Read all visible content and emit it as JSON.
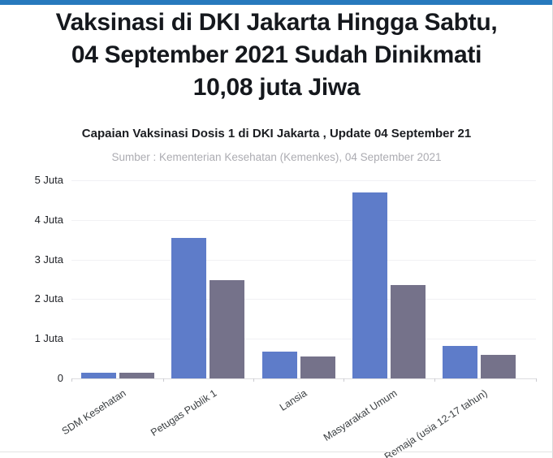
{
  "page": {
    "accent_color": "#2779bd",
    "title_lines": [
      "Vaksinasi di DKI Jakarta Hingga Sabtu,",
      "04 September 2021 Sudah Dinikmati",
      "10,08 juta Jiwa"
    ]
  },
  "chart_data": {
    "type": "bar",
    "title": "Capaian Vaksinasi Dosis 1 di DKI Jakarta , Update 04 September 21",
    "source": "Sumber : Kementerian Kesehatan (Kemenkes), 04 September 2021",
    "categories": [
      "SDM Kesehatan",
      "Petugas Publik 1",
      "Lansia",
      "Masyarakat Umum",
      "Remaja (usia 12-17 tahun)"
    ],
    "unit": "Juta",
    "series": [
      {
        "name": "series-blue",
        "color": "#5e7cc9",
        "values_juta": [
          0.15,
          3.55,
          0.68,
          4.7,
          0.82
        ]
      },
      {
        "name": "series-gray",
        "color": "#75728a",
        "values_juta": [
          0.14,
          2.48,
          0.56,
          2.36,
          0.6
        ]
      }
    ],
    "y_ticks": [
      "5 Juta",
      "4 Juta",
      "3 Juta",
      "2 Juta",
      "1 Juta",
      "0"
    ],
    "y_tick_values": [
      5,
      4,
      3,
      2,
      1,
      0
    ],
    "ylim": [
      0,
      5
    ],
    "grid": true,
    "legend": "none"
  }
}
